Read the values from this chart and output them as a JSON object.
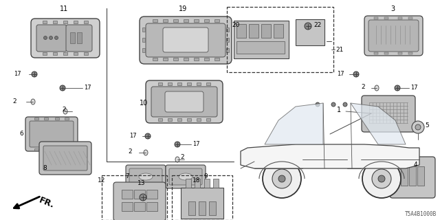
{
  "bg_color": "#ffffff",
  "diagram_code": "T5A4B1000B",
  "fr_label": "FR.",
  "line_color": "#444444",
  "label_color": "#000000",
  "part_fill": "#e0e0e0",
  "part_edge": "#555555",
  "hatch_color": "#888888"
}
